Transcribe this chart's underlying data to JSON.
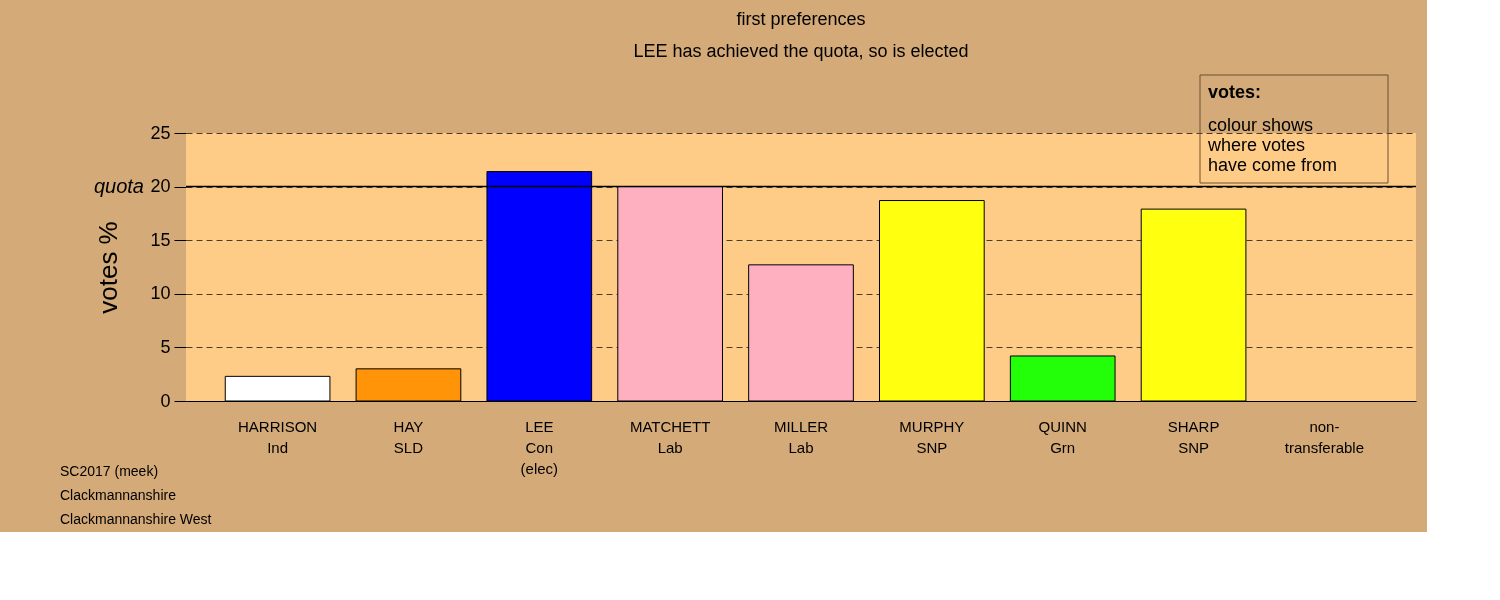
{
  "chart_data": {
    "type": "bar",
    "title": "first preferences",
    "subtitle": "LEE has achieved the quota, so is elected",
    "ylabel": "votes %",
    "categories": [
      "HARRISON\nInd",
      "HAY\nSLD",
      "LEE\nCon\n(elec)",
      "MATCHETT\nLab",
      "MILLER\nLab",
      "MURPHY\nSNP",
      "QUINN\nGrn",
      "SHARP\nSNP",
      "non-\ntransferable"
    ],
    "values": [
      2.3,
      3.0,
      21.4,
      20.0,
      12.7,
      18.7,
      4.2,
      17.9,
      null
    ],
    "colors": [
      "#ffffff",
      "#ff9408",
      "#0000ff",
      "#ffb0c0",
      "#ffb0c0",
      "#ffff10",
      "#22ff08",
      "#ffff10",
      null
    ],
    "ylim": [
      0,
      25
    ],
    "yticks": [
      0,
      5,
      10,
      15,
      20,
      25
    ],
    "grid": "y",
    "ref_lines": [
      {
        "axis": "y",
        "value": 20,
        "label": "quota"
      }
    ],
    "annotations": [
      "SC2017 (meek)",
      "Clackmannanshire",
      "Clackmannanshire West",
      "votes:",
      "colour shows\nwhere votes\nhave come from"
    ]
  }
}
